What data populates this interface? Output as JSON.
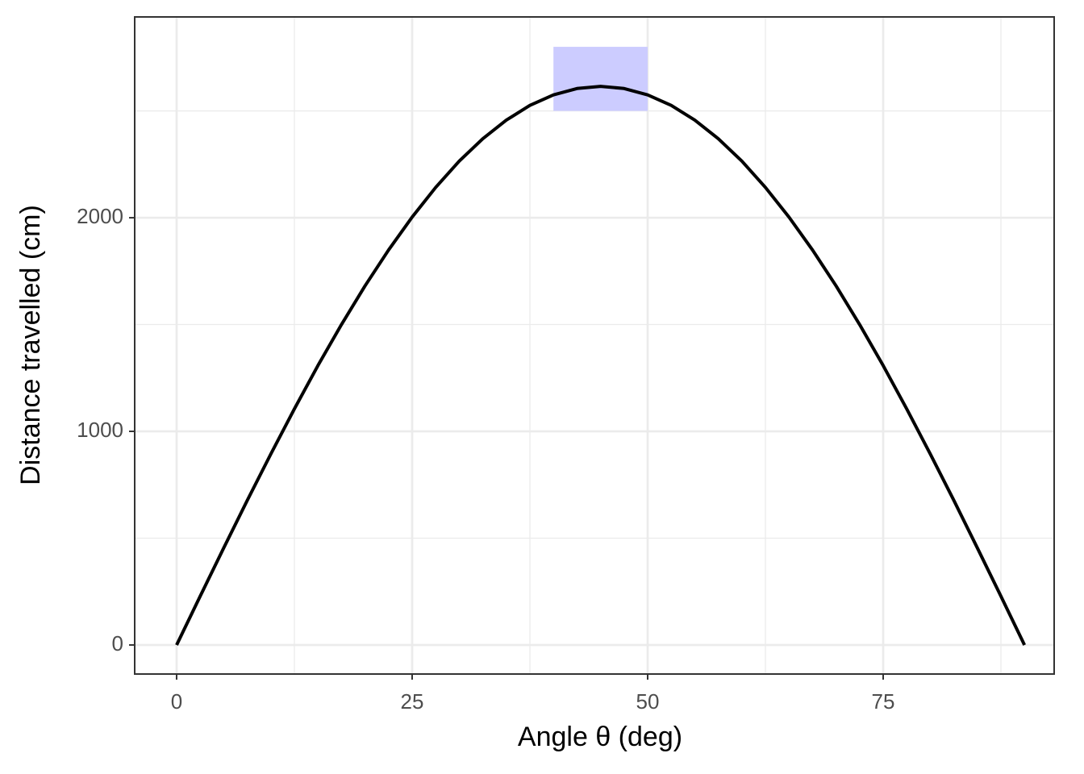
{
  "chart_data": {
    "type": "line",
    "xlabel": "Angle θ (deg)",
    "ylabel": "Distance travelled (cm)",
    "x": [
      0,
      2.5,
      5,
      7.5,
      10,
      12.5,
      15,
      17.5,
      20,
      22.5,
      25,
      27.5,
      30,
      32.5,
      35,
      37.5,
      40,
      42.5,
      45,
      47.5,
      50,
      52.5,
      55,
      57.5,
      60,
      62.5,
      65,
      67.5,
      70,
      72.5,
      75,
      77.5,
      80,
      82.5,
      85,
      87.5,
      90
    ],
    "series": [
      {
        "color": "#000000",
        "values": [
          0,
          228,
          454,
          677,
          894,
          1105,
          1308,
          1500,
          1681,
          1849,
          2003,
          2142,
          2265,
          2370,
          2457,
          2526,
          2575,
          2605,
          2615,
          2605,
          2575,
          2526,
          2457,
          2370,
          2265,
          2142,
          2003,
          1849,
          1681,
          1500,
          1308,
          1105,
          894,
          677,
          454,
          228,
          0
        ]
      }
    ],
    "rect": {
      "xmin": 40,
      "xmax": 50,
      "ymin": 2500,
      "ymax": 2800,
      "color": "#ccccff"
    },
    "xlim": [
      -4.45,
      93.15
    ],
    "xticks": [
      0,
      25,
      50,
      75
    ],
    "xgrid_minor": [
      12.5,
      37.5,
      62.5,
      87.5
    ],
    "ylim": [
      -136,
      2940
    ],
    "yticks": [
      0,
      1000,
      2000
    ],
    "ygrid_minor": [
      500,
      1500,
      2500
    ],
    "grid": true
  }
}
